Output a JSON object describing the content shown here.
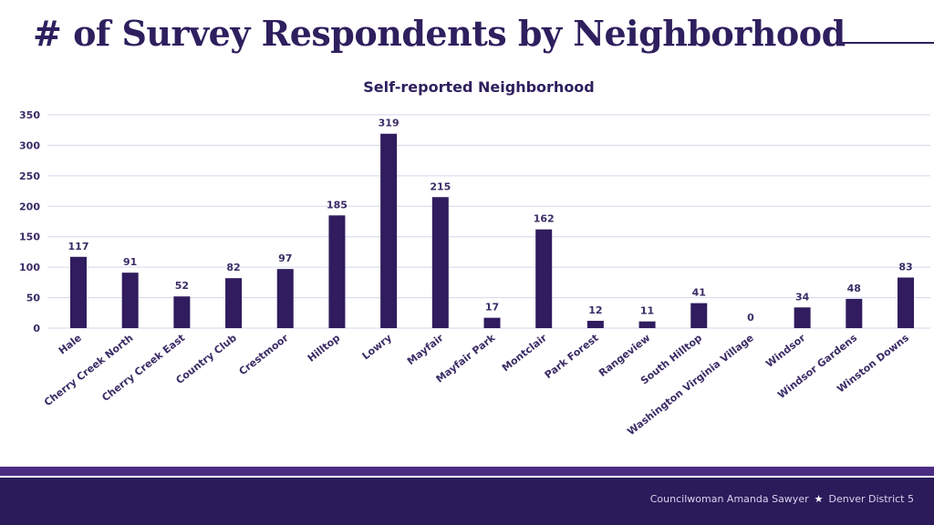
{
  "page": {
    "title": "# of Survey Respondents by Neighborhood",
    "footer_name": "Councilwoman Amanda Sawyer",
    "footer_separator": "★",
    "footer_district": "Denver District 5"
  },
  "colors": {
    "bar": "#301c5e",
    "title": "#2e1f5e",
    "gridline": "#d5d6ea",
    "axis_text": "#3a2c66",
    "footer": "#2b1b5a"
  },
  "chart_data": {
    "type": "bar",
    "title": "Self-reported Neighborhood",
    "xlabel": "",
    "ylabel": "",
    "ylim": [
      0,
      350
    ],
    "yticks": [
      0,
      50,
      100,
      150,
      200,
      250,
      300,
      350
    ],
    "grid": true,
    "categories": [
      "Hale",
      "Cherry Creek North",
      "Cherry Creek East",
      "Country Club",
      "Crestmoor",
      "Hilltop",
      "Lowry",
      "Mayfair",
      "Mayfair Park",
      "Montclair",
      "Park Forest",
      "Rangeview",
      "South Hilltop",
      "Washington Virginia Village",
      "Windsor",
      "Windsor Gardens",
      "Winston Downs"
    ],
    "values": [
      117,
      91,
      52,
      82,
      97,
      185,
      319,
      215,
      17,
      162,
      12,
      11,
      41,
      0,
      34,
      48,
      83
    ]
  }
}
